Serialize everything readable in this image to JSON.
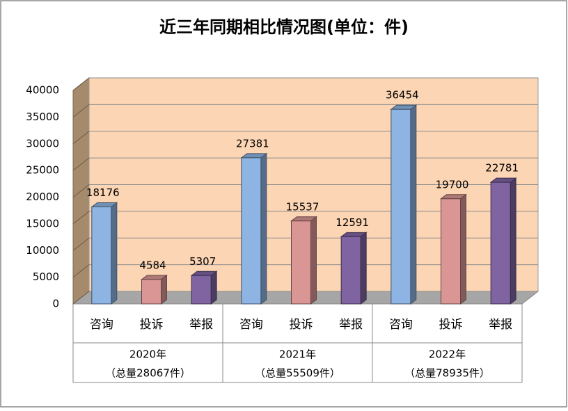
{
  "chart_data": {
    "type": "bar3d",
    "title": "近三年同期相比情况图(单位：件)",
    "categories": [
      "2020年",
      "2021年",
      "2022年"
    ],
    "category_totals": [
      "（总量28067件）",
      "（总量55509件）",
      "（总量78935件）"
    ],
    "series": [
      {
        "name": "咨询",
        "color": "#8db4e2",
        "values": [
          18176,
          27381,
          36454
        ]
      },
      {
        "name": "投诉",
        "color": "#da9694",
        "values": [
          4584,
          15537,
          19700
        ]
      },
      {
        "name": "举报",
        "color": "#8064a2",
        "values": [
          5307,
          12591,
          22781
        ]
      }
    ],
    "ylim": [
      0,
      40000
    ],
    "yticks": [
      0,
      5000,
      10000,
      15000,
      20000,
      25000,
      30000,
      35000,
      40000
    ],
    "grid": true
  }
}
